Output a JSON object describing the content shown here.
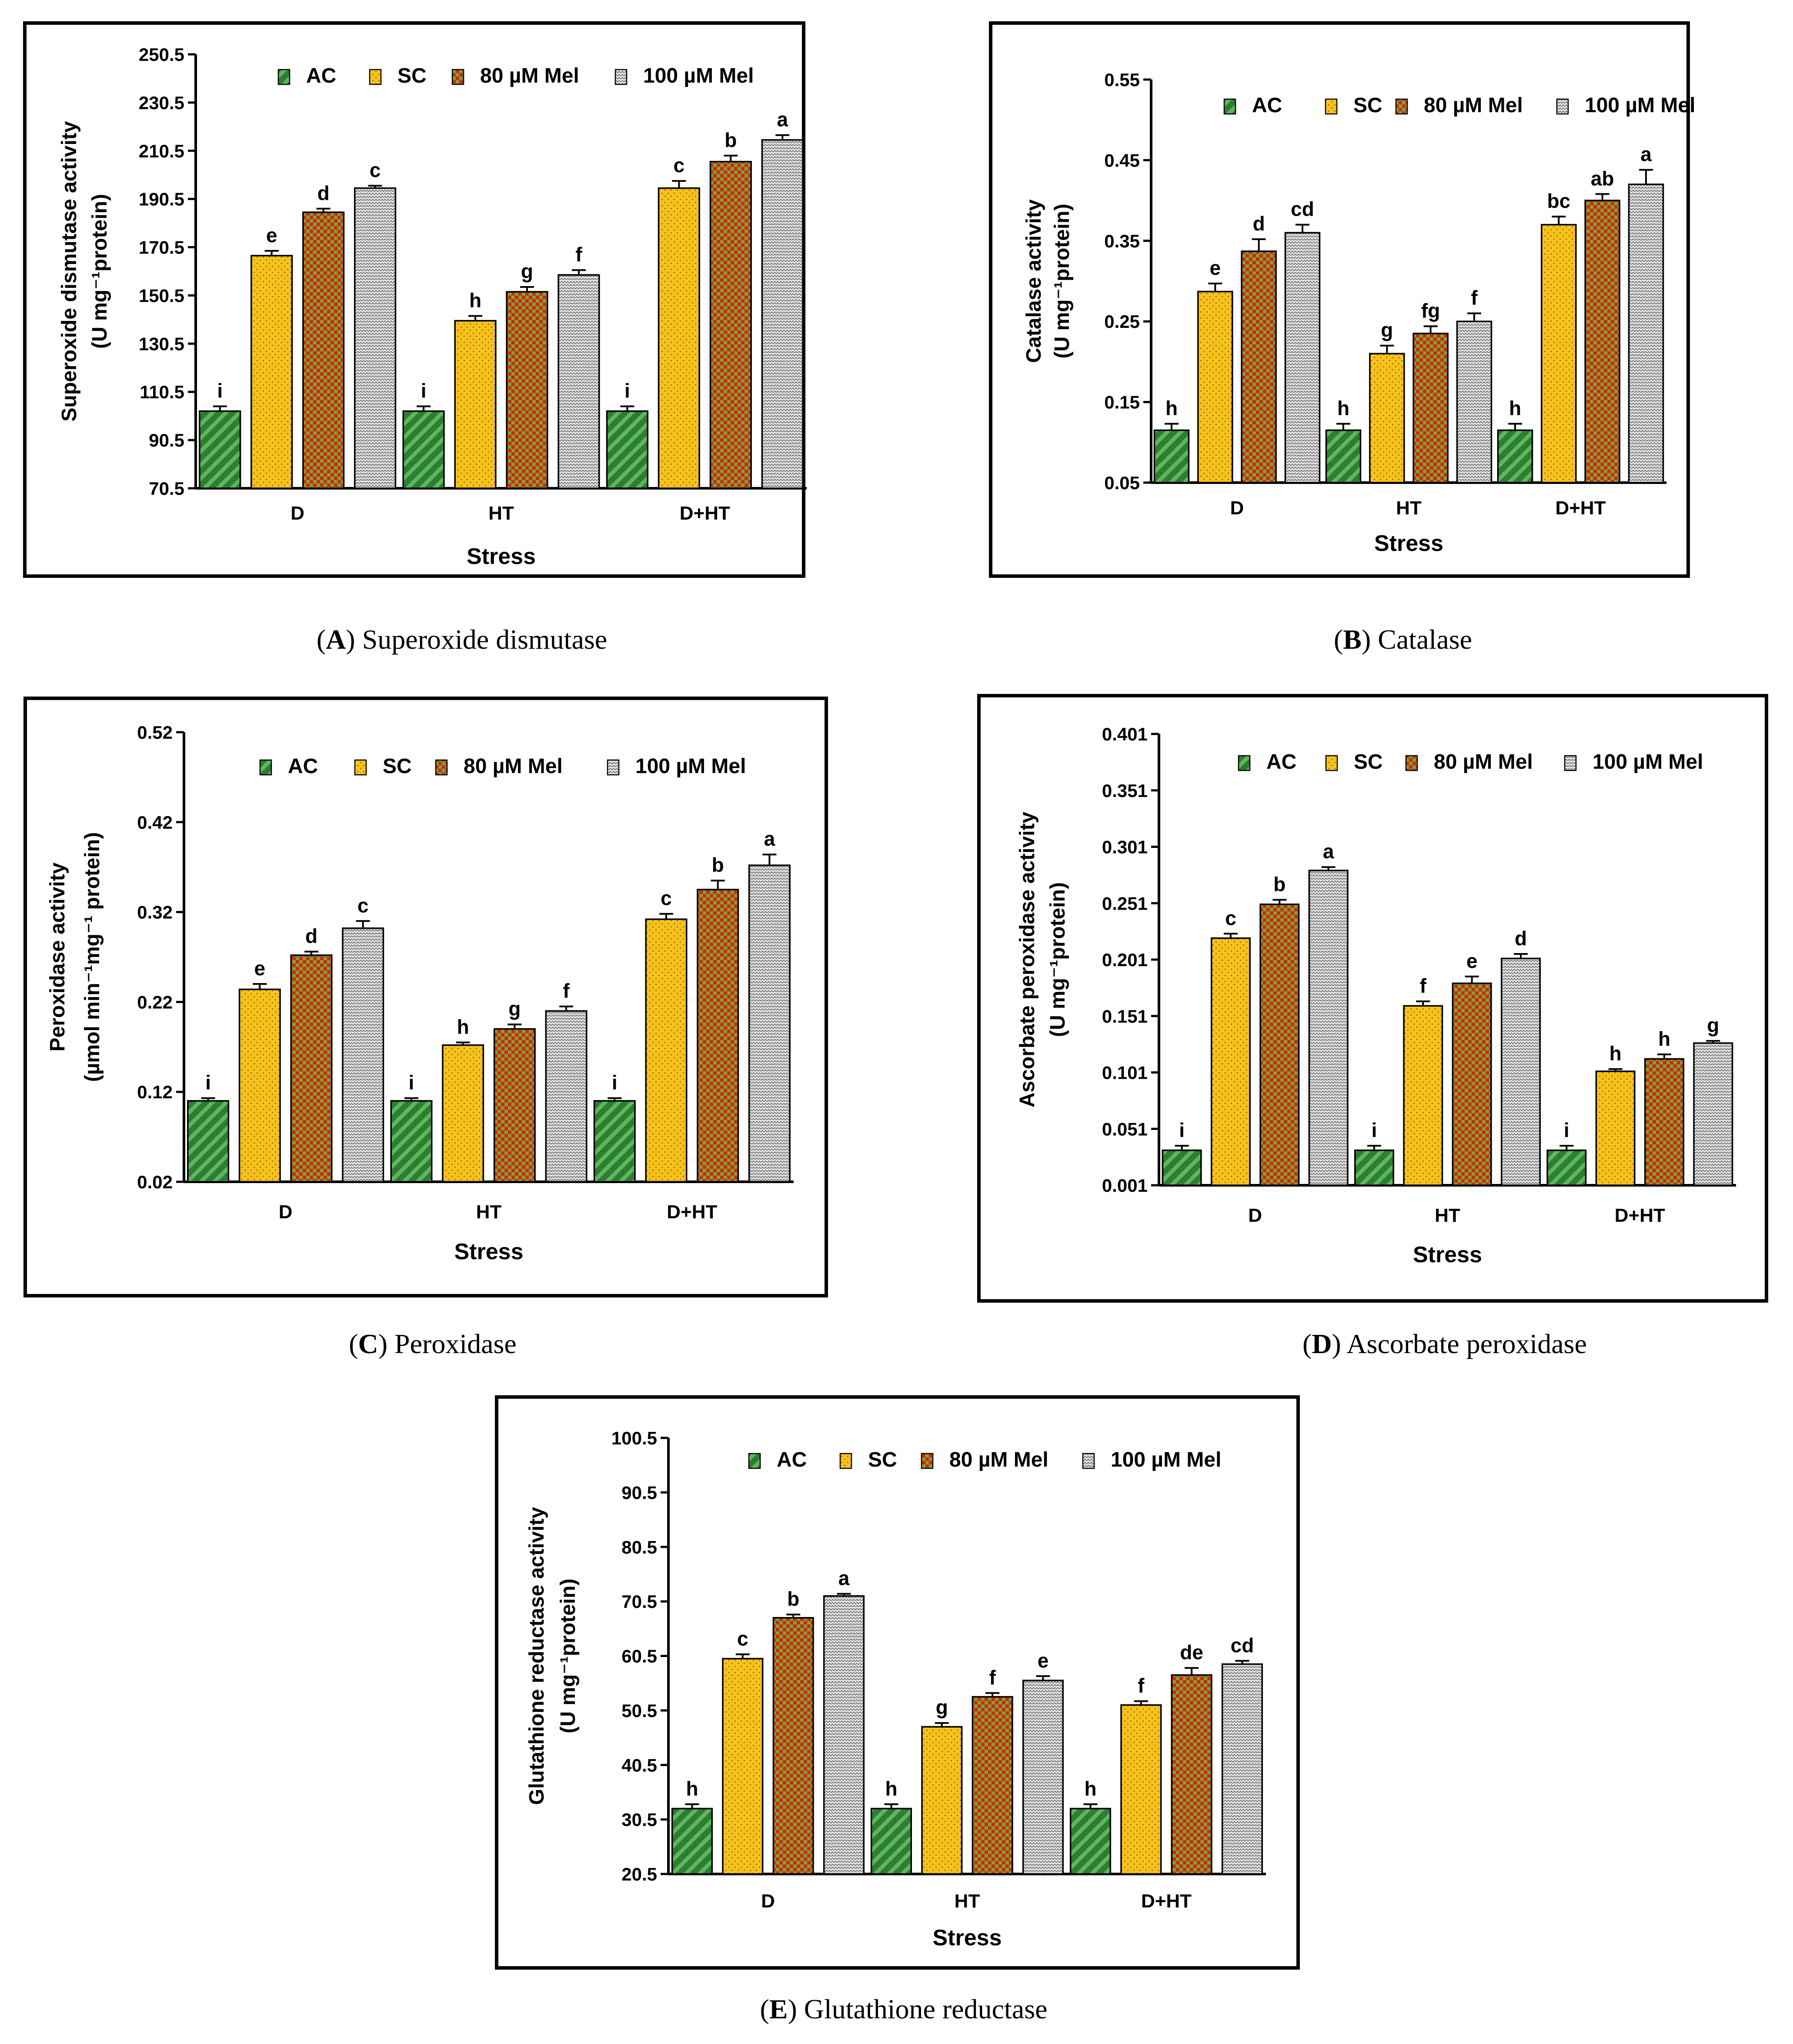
{
  "legend": {
    "items": [
      {
        "label": "AC",
        "pattern": "diag-green"
      },
      {
        "label": "SC",
        "pattern": "dots-yellow"
      },
      {
        "label": "80 µM Mel",
        "pattern": "checker-red"
      },
      {
        "label": "100 µM Mel",
        "pattern": "zigzag-gray"
      }
    ]
  },
  "colors": {
    "ac": "#2e7d32",
    "ac_stripe": "#5cb85c",
    "sc": "#f7c21c",
    "sc_dot": "#9a7400",
    "mel80": "#d6231c",
    "mel80_check": "#7aa62a",
    "mel100": "#e6e6e6",
    "mel100_line": "#666666",
    "frame": "#000000"
  },
  "chart_data": [
    {
      "panel": "A",
      "type": "bar",
      "caption_letter": "A",
      "caption_text": "Superoxide dismutase",
      "ylabel_line1": "Superoxide dismutase activity",
      "ylabel_line2": "(U mg⁻¹protein)",
      "xlabel": "Stress",
      "categories": [
        "D",
        "HT",
        "D+HT"
      ],
      "ylim": [
        70.5,
        250.5
      ],
      "ticks": [
        "70.5",
        "90.5",
        "110.5",
        "130.5",
        "150.5",
        "170.5",
        "190.5",
        "210.5",
        "230.5",
        "250.5"
      ],
      "series": [
        {
          "name": "AC",
          "values": [
            102.5,
            102.5,
            102.5
          ],
          "errors": [
            2,
            2,
            2
          ],
          "letters": [
            "i",
            "i",
            "i"
          ]
        },
        {
          "name": "SC",
          "values": [
            167,
            140,
            195
          ],
          "errors": [
            2,
            2,
            3
          ],
          "letters": [
            "e",
            "h",
            "c"
          ]
        },
        {
          "name": "80 µM Mel",
          "values": [
            185,
            152,
            206
          ],
          "errors": [
            1.5,
            2,
            2.5
          ],
          "letters": [
            "d",
            "g",
            "b"
          ]
        },
        {
          "name": "100 µM Mel",
          "values": [
            195,
            159,
            215
          ],
          "errors": [
            1,
            2,
            2
          ],
          "letters": [
            "c",
            "f",
            "a"
          ]
        }
      ]
    },
    {
      "panel": "B",
      "type": "bar",
      "caption_letter": "B",
      "caption_text": "Catalase",
      "ylabel_line1": "Catalase activity",
      "ylabel_line2": "(U mg⁻¹protein)",
      "xlabel": "Stress",
      "categories": [
        "D",
        "HT",
        "D+HT"
      ],
      "ylim": [
        0.05,
        0.55
      ],
      "ticks": [
        "0.05",
        "0.15",
        "0.25",
        "0.35",
        "0.45",
        "0.55"
      ],
      "series": [
        {
          "name": "AC",
          "values": [
            0.115,
            0.115,
            0.115
          ],
          "errors": [
            0.008,
            0.008,
            0.008
          ],
          "letters": [
            "h",
            "h",
            "h"
          ]
        },
        {
          "name": "SC",
          "values": [
            0.287,
            0.21,
            0.37
          ],
          "errors": [
            0.01,
            0.01,
            0.01
          ],
          "letters": [
            "e",
            "g",
            "bc"
          ]
        },
        {
          "name": "80 µM Mel",
          "values": [
            0.337,
            0.235,
            0.4
          ],
          "errors": [
            0.015,
            0.009,
            0.008
          ],
          "letters": [
            "d",
            "fg",
            "ab"
          ]
        },
        {
          "name": "100 µM Mel",
          "values": [
            0.36,
            0.25,
            0.42
          ],
          "errors": [
            0.01,
            0.01,
            0.018
          ],
          "letters": [
            "cd",
            "f",
            "a"
          ]
        }
      ]
    },
    {
      "panel": "C",
      "type": "bar",
      "caption_letter": "C",
      "caption_text": "Peroxidase",
      "ylabel_line1": "Peroxidase activity",
      "ylabel_line2": "(µmol min⁻¹mg⁻¹ protein)",
      "xlabel": "Stress",
      "categories": [
        "D",
        "HT",
        "D+HT"
      ],
      "ylim": [
        0.02,
        0.52
      ],
      "ticks": [
        "0.02",
        "0.12",
        "0.22",
        "0.32",
        "0.42",
        "0.52"
      ],
      "series": [
        {
          "name": "AC",
          "values": [
            0.11,
            0.11,
            0.11
          ],
          "errors": [
            0.003,
            0.003,
            0.003
          ],
          "letters": [
            "i",
            "i",
            "i"
          ]
        },
        {
          "name": "SC",
          "values": [
            0.234,
            0.172,
            0.312
          ],
          "errors": [
            0.006,
            0.003,
            0.006
          ],
          "letters": [
            "e",
            "h",
            "c"
          ]
        },
        {
          "name": "80 µM Mel",
          "values": [
            0.272,
            0.19,
            0.345
          ],
          "errors": [
            0.004,
            0.005,
            0.01
          ],
          "letters": [
            "d",
            "g",
            "b"
          ]
        },
        {
          "name": "100 µM Mel",
          "values": [
            0.302,
            0.21,
            0.372
          ],
          "errors": [
            0.008,
            0.005,
            0.012
          ],
          "letters": [
            "c",
            "f",
            "a"
          ]
        }
      ]
    },
    {
      "panel": "D",
      "type": "bar",
      "caption_letter": "D",
      "caption_text": "Ascorbate peroxidase",
      "ylabel_line1": "Ascorbate peroxidase activity",
      "ylabel_line2": "(U mg⁻¹protein)",
      "xlabel": "Stress",
      "categories": [
        "D",
        "HT",
        "D+HT"
      ],
      "ylim": [
        0.001,
        0.401
      ],
      "ticks": [
        "0.001",
        "0.051",
        "0.101",
        "0.151",
        "0.201",
        "0.251",
        "0.301",
        "0.351",
        "0.401"
      ],
      "series": [
        {
          "name": "AC",
          "values": [
            0.032,
            0.032,
            0.032
          ],
          "errors": [
            0.004,
            0.004,
            0.004
          ],
          "letters": [
            "i",
            "i",
            "i"
          ]
        },
        {
          "name": "SC",
          "values": [
            0.22,
            0.16,
            0.102
          ],
          "errors": [
            0.004,
            0.004,
            0.002
          ],
          "letters": [
            "c",
            "f",
            "h"
          ]
        },
        {
          "name": "80 µM Mel",
          "values": [
            0.25,
            0.18,
            0.113
          ],
          "errors": [
            0.004,
            0.006,
            0.004
          ],
          "letters": [
            "b",
            "e",
            "h"
          ]
        },
        {
          "name": "100 µM Mel",
          "values": [
            0.28,
            0.202,
            0.127
          ],
          "errors": [
            0.003,
            0.004,
            0.002
          ],
          "letters": [
            "a",
            "d",
            "g"
          ]
        }
      ]
    },
    {
      "panel": "E",
      "type": "bar",
      "caption_letter": "E",
      "caption_text": "Glutathione reductase",
      "ylabel_line1": "Glutathione reductase activity",
      "ylabel_line2": "(U mg⁻¹protein)",
      "xlabel": "Stress",
      "categories": [
        "D",
        "HT",
        "D+HT"
      ],
      "ylim": [
        20.5,
        100.5
      ],
      "ticks": [
        "20.5",
        "30.5",
        "40.5",
        "50.5",
        "60.5",
        "70.5",
        "80.5",
        "90.5",
        "100.5"
      ],
      "series": [
        {
          "name": "AC",
          "values": [
            32.5,
            32.5,
            32.5
          ],
          "errors": [
            0.8,
            0.8,
            0.8
          ],
          "letters": [
            "h",
            "h",
            "h"
          ]
        },
        {
          "name": "SC",
          "values": [
            60,
            47.5,
            51.5
          ],
          "errors": [
            0.8,
            0.7,
            0.7
          ],
          "letters": [
            "c",
            "g",
            "f"
          ]
        },
        {
          "name": "80 µM Mel",
          "values": [
            67.5,
            53,
            57
          ],
          "errors": [
            0.6,
            0.7,
            1.3
          ],
          "letters": [
            "b",
            "f",
            "de"
          ]
        },
        {
          "name": "100 µM Mel",
          "values": [
            71.5,
            56,
            59
          ],
          "errors": [
            0.4,
            0.8,
            0.6
          ],
          "letters": [
            "a",
            "e",
            "cd"
          ]
        }
      ]
    }
  ]
}
